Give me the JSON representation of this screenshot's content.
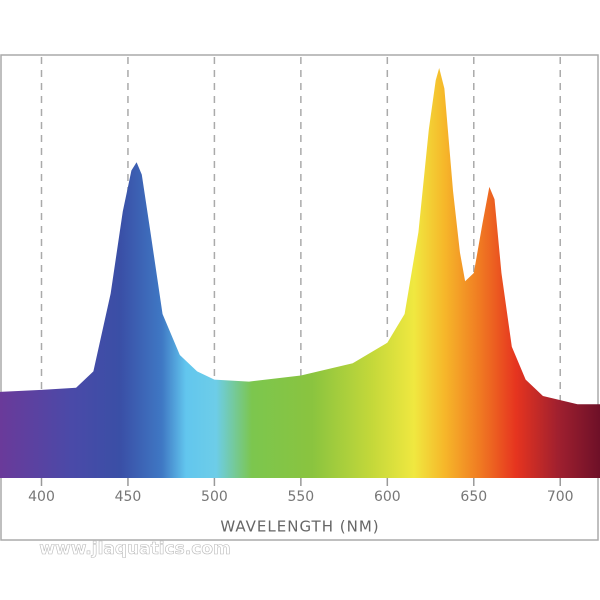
{
  "chart_data": {
    "type": "area",
    "x": [
      376,
      400,
      420,
      430,
      440,
      447,
      452,
      455,
      458,
      463,
      470,
      480,
      490,
      500,
      520,
      550,
      580,
      600,
      610,
      618,
      624,
      628,
      630,
      633,
      638,
      642,
      645,
      650,
      655,
      659,
      662,
      666,
      672,
      680,
      690,
      700,
      710,
      723
    ],
    "y": [
      21,
      21.5,
      22,
      26,
      45,
      65,
      75,
      77,
      74,
      60,
      40,
      30,
      26,
      24,
      23.5,
      25,
      28,
      33,
      40,
      60,
      85,
      97,
      100,
      95,
      70,
      55,
      48,
      50,
      62,
      71,
      68,
      50,
      32,
      24,
      20,
      19,
      18,
      18
    ],
    "xlim": [
      376,
      723
    ],
    "ylim": [
      0,
      100
    ],
    "xticks": [
      400,
      450,
      500,
      550,
      600,
      650,
      700
    ],
    "xlabel": "WAVELENGTH (NM)",
    "grid": true,
    "watermark": "www.jlaquatics.com"
  }
}
